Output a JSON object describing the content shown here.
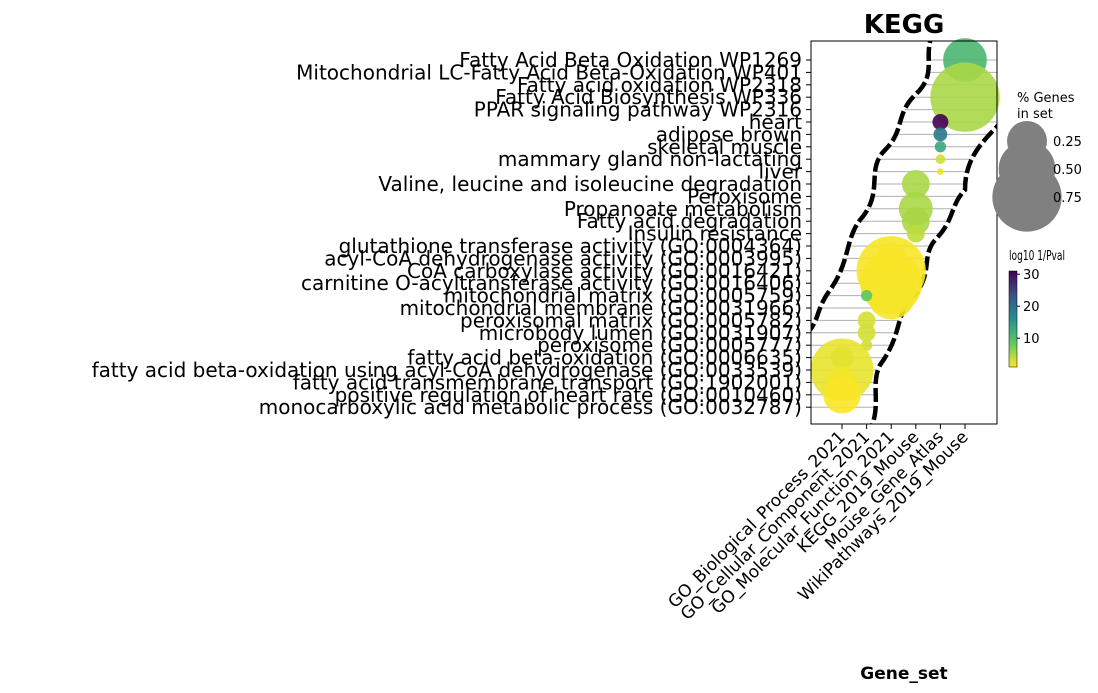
{
  "chart_data": {
    "type": "scatter",
    "title": "KEGG",
    "xlabel": "Gene_set",
    "x_categories": [
      "GO_Biological_Process_2021",
      "GO_Cellular_Component_2021",
      "GO_Molecular_Function_2021",
      "KEGG_2019_Mouse",
      "Mouse_Gene_Atlas",
      "WikiPathways_2019_Mouse"
    ],
    "y_terms": [
      "Fatty Acid Beta Oxidation WP1269",
      "Mitochondrial LC-Fatty Acid Beta-Oxidation WP401",
      "Fatty acid oxidation WP2318",
      "Fatty Acid Biosynthesis WP336",
      "PPAR signaling pathway WP2316",
      "heart",
      "adipose brown",
      "skeletal muscle",
      "mammary gland non-lactating",
      "liver",
      "Valine, leucine and isoleucine degradation",
      "Peroxisome",
      "Propanoate metabolism",
      "Fatty acid degradation",
      "Insulin resistance",
      "glutathione transferase activity (GO:0004364)",
      "acyl-CoA dehydrogenase activity (GO:0003995)",
      "CoA carboxylase activity (GO:0016421)",
      "carnitine O-acyltransferase activity (GO:0016406)",
      "mitochondrial matrix (GO:0005759)",
      "mitochondrial membrane (GO:0031966)",
      "peroxisomal matrix (GO:0005782)",
      "microbody lumen (GO:0031907)",
      "peroxisome (GO:0005777)",
      "fatty acid beta-oxidation (GO:0006635)",
      "fatty acid beta-oxidation using acyl-CoA dehydrogenase (GO:0033539)",
      "fatty acid transmembrane transport (GO:1902001)",
      "positive regulation of heart rate (GO:0010460)",
      "monocarboxylic acid metabolic process (GO:0032787)"
    ],
    "points": [
      {
        "x": "WikiPathways_2019_Mouse",
        "y": 0,
        "size": 0.3,
        "neglogp": 11
      },
      {
        "x": "WikiPathways_2019_Mouse",
        "y": 3,
        "size": 0.75,
        "neglogp": 5
      },
      {
        "x": "Mouse_Gene_Atlas",
        "y": 5,
        "size": 0.04,
        "neglogp": 31
      },
      {
        "x": "Mouse_Gene_Atlas",
        "y": 6,
        "size": 0.03,
        "neglogp": 19
      },
      {
        "x": "Mouse_Gene_Atlas",
        "y": 7,
        "size": 0.02,
        "neglogp": 13
      },
      {
        "x": "Mouse_Gene_Atlas",
        "y": 8,
        "size": 0.015,
        "neglogp": 3
      },
      {
        "x": "Mouse_Gene_Atlas",
        "y": 9,
        "size": 0.007,
        "neglogp": 2
      },
      {
        "x": "KEGG_2019_Mouse",
        "y": 10,
        "size": 0.12,
        "neglogp": 5
      },
      {
        "x": "KEGG_2019_Mouse",
        "y": 12,
        "size": 0.18,
        "neglogp": 5
      },
      {
        "x": "KEGG_2019_Mouse",
        "y": 13,
        "size": 0.12,
        "neglogp": 5
      },
      {
        "x": "KEGG_2019_Mouse",
        "y": 14,
        "size": 0.05,
        "neglogp": 4
      },
      {
        "x": "GO_Molecular_Function_2021",
        "y": 16,
        "size": 0.15,
        "neglogp": 1.5
      },
      {
        "x": "GO_Molecular_Function_2021",
        "y": 17,
        "size": 0.75,
        "neglogp": 1.3
      },
      {
        "x": "GO_Molecular_Function_2021",
        "y": 18,
        "size": 0.6,
        "neglogp": 1.3
      },
      {
        "x": "GO_Molecular_Function_2021",
        "y": 19,
        "size": 0.35,
        "neglogp": 1.4
      },
      {
        "x": "GO_Cellular_Component_2021",
        "y": 19,
        "size": 0.02,
        "neglogp": 9
      },
      {
        "x": "GO_Cellular_Component_2021",
        "y": 21,
        "size": 0.05,
        "neglogp": 3
      },
      {
        "x": "GO_Cellular_Component_2021",
        "y": 22,
        "size": 0.05,
        "neglogp": 3
      },
      {
        "x": "GO_Cellular_Component_2021",
        "y": 23,
        "size": 0.02,
        "neglogp": 3
      },
      {
        "x": "GO_Biological_Process_2021",
        "y": 24,
        "size": 0.08,
        "neglogp": 4
      },
      {
        "x": "GO_Biological_Process_2021",
        "y": 25,
        "size": 0.62,
        "neglogp": 2
      },
      {
        "x": "GO_Biological_Process_2021",
        "y": 26,
        "size": 0.15,
        "neglogp": 1.5
      },
      {
        "x": "GO_Biological_Process_2021",
        "y": 27,
        "size": 0.22,
        "neglogp": 1.2
      }
    ],
    "size_legend": {
      "title": "% Genes\nin set",
      "ticks": [
        "0.25",
        "0.50",
        "0.75"
      ],
      "tick_values": [
        0.25,
        0.5,
        0.75
      ]
    },
    "colorbar": {
      "title": "log10 1/Pval",
      "ticks": [
        "10",
        "20",
        "30"
      ],
      "tick_values": [
        10,
        20,
        30
      ],
      "range": [
        1,
        31
      ],
      "colormap": "viridis_r"
    },
    "grid": true,
    "legend_placement": "right"
  }
}
